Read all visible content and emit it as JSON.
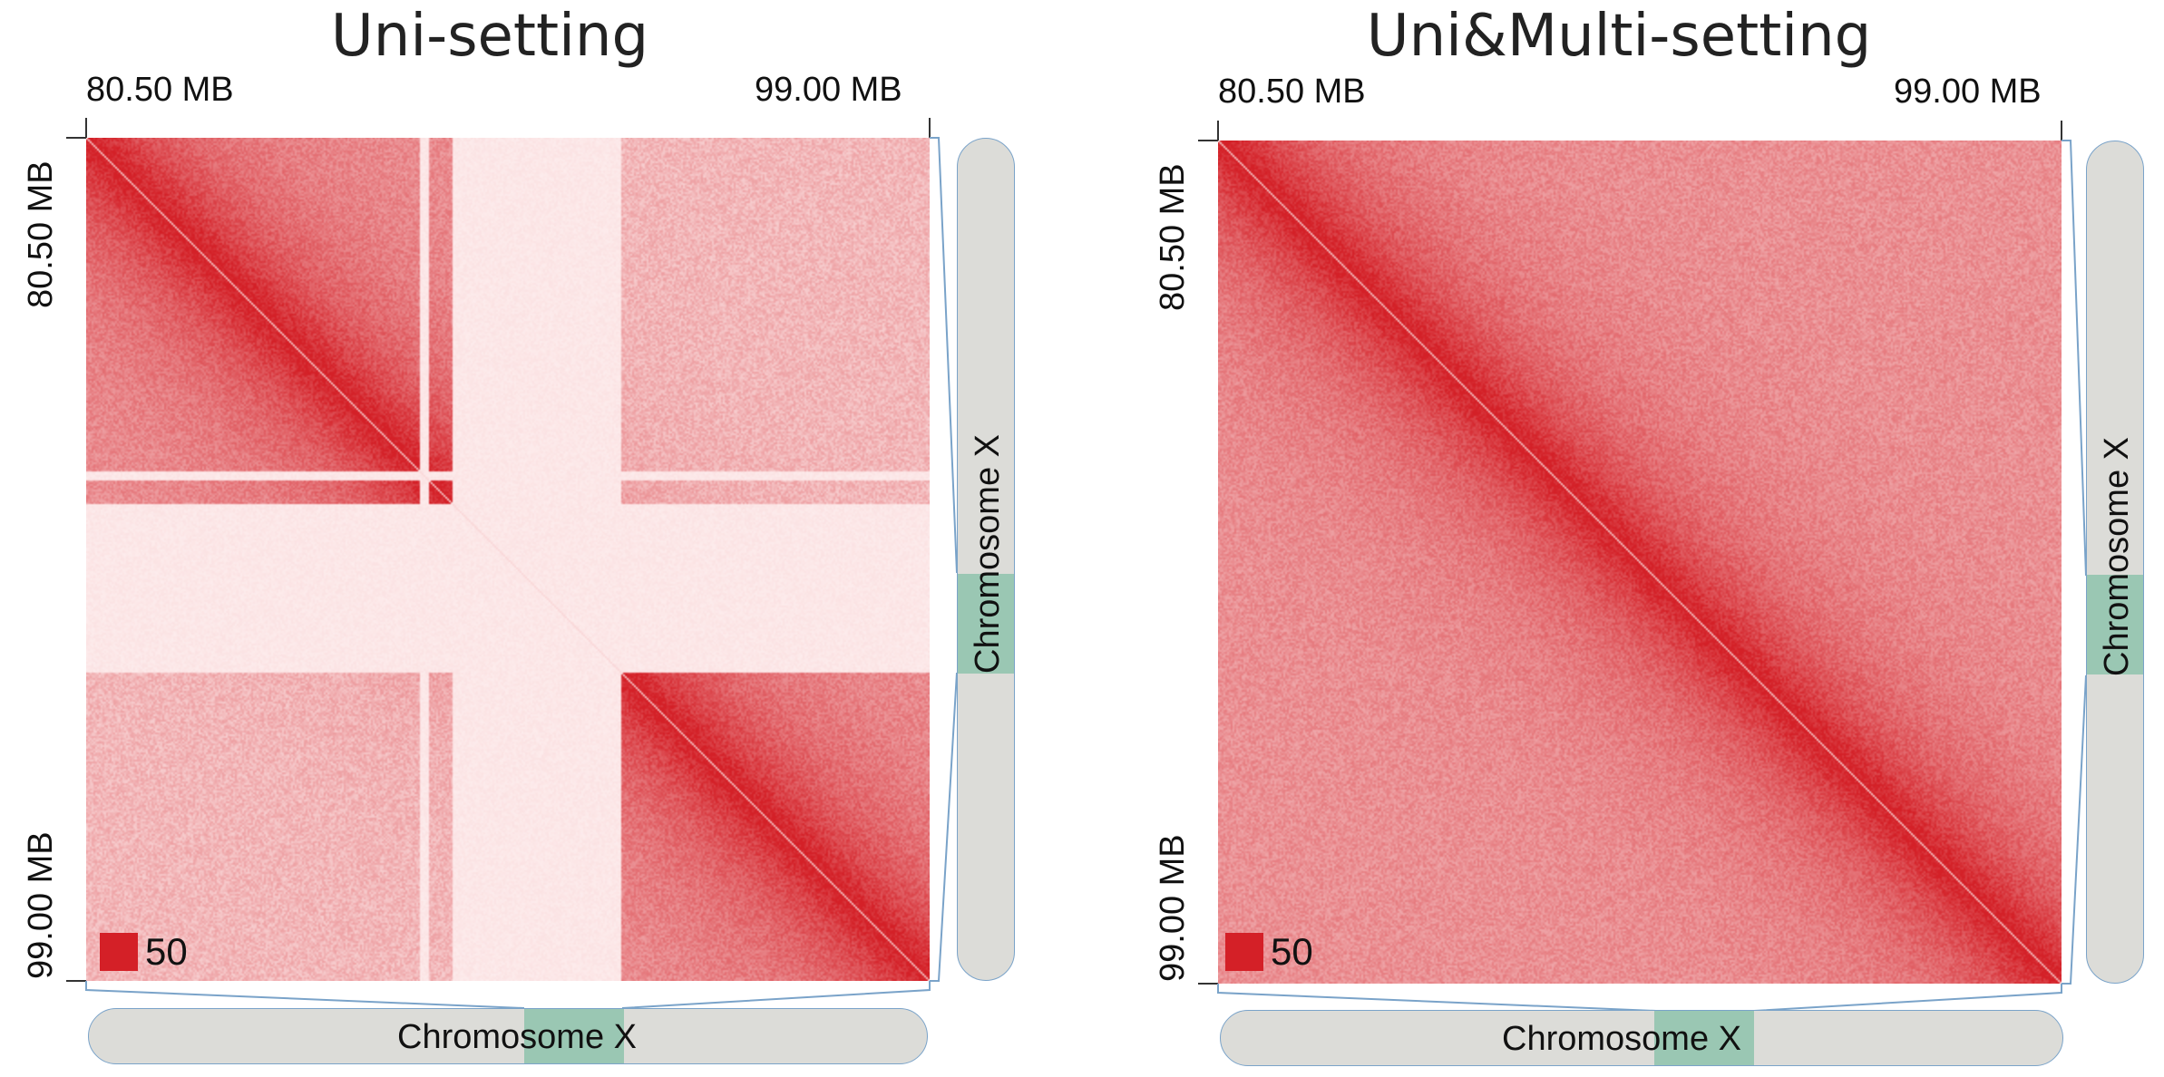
{
  "colors": {
    "heat": "#d42027",
    "heat_light": "#fbeeee",
    "chromosome": "#dcdcd8",
    "band": "#9ac7b3",
    "connector": "#7aa3c9"
  },
  "chart_data": [
    {
      "type": "heatmap",
      "title": "Uni-setting",
      "x_ticks": [
        "80.50 MB",
        "99.00 MB"
      ],
      "y_ticks": [
        "80.50 MB",
        "99.00 MB"
      ],
      "xlim_mb": [
        80.5,
        99.0
      ],
      "ylim_mb": [
        80.5,
        99.0
      ],
      "color_scale_max": 50,
      "legend_label": "50",
      "chromosome_label": "Chromosome X",
      "pattern": {
        "diagonal": true,
        "domains_mb": [
          [
            80.5,
            88.5
          ],
          [
            92.2,
            99.0
          ]
        ],
        "empty_bands_mb": [
          [
            88.5,
            92.2
          ],
          [
            91.5,
            91.9
          ],
          [
            87.8,
            88.0
          ]
        ]
      }
    },
    {
      "type": "heatmap",
      "title": "Uni&Multi-setting",
      "x_ticks": [
        "80.50 MB",
        "99.00 MB"
      ],
      "y_ticks": [
        "80.50 MB",
        "99.00 MB"
      ],
      "xlim_mb": [
        80.5,
        99.0
      ],
      "ylim_mb": [
        80.5,
        99.0
      ],
      "color_scale_max": 50,
      "legend_label": "50",
      "chromosome_label": "Chromosome X",
      "pattern": {
        "diagonal": true,
        "domains_mb": [
          [
            80.5,
            99.0
          ]
        ],
        "empty_bands_mb": []
      }
    }
  ]
}
